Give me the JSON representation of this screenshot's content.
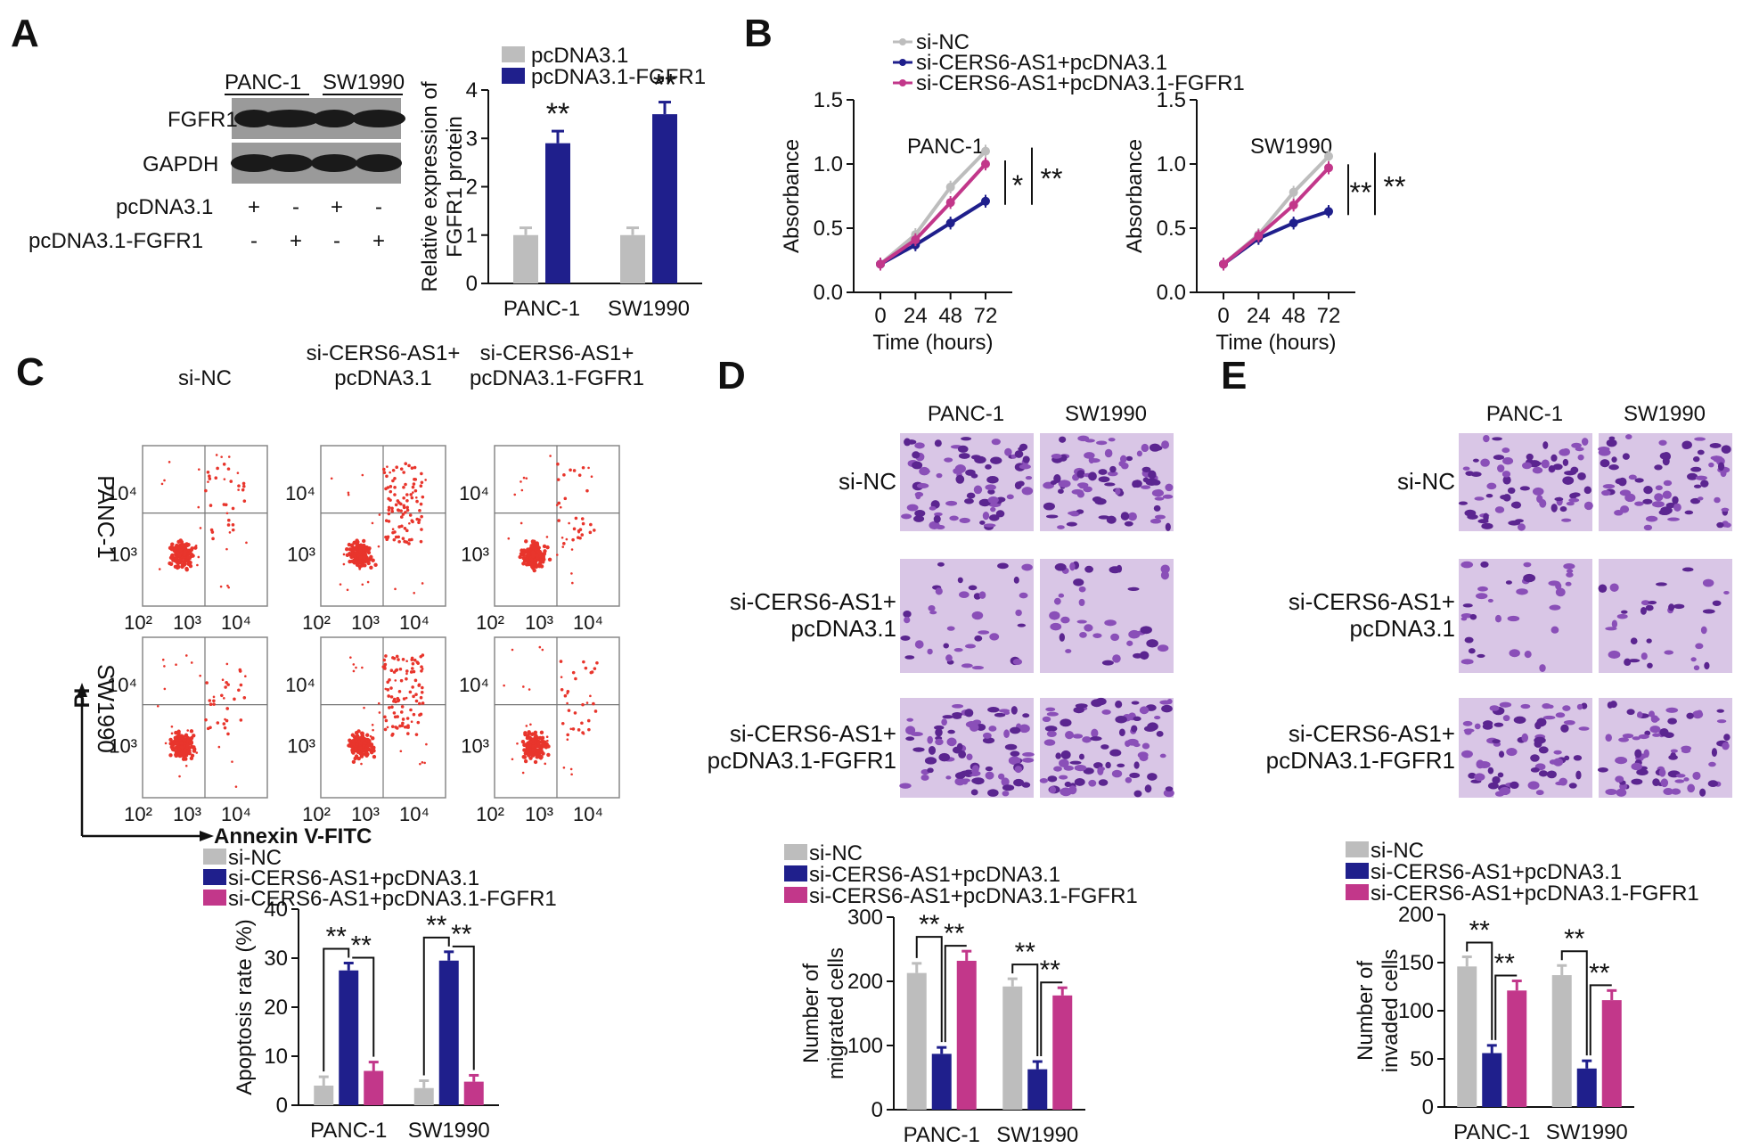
{
  "panel_labels": {
    "a": "A",
    "b": "B",
    "c": "C",
    "d": "D",
    "e": "E"
  },
  "colors": {
    "grey": "#bdbdbd",
    "blue": "#1f1f8c",
    "magenta": "#c2378a",
    "dot": "#e8352c"
  },
  "western_blot": {
    "cell_lines": [
      "PANC-1",
      "SW1990"
    ],
    "bands": [
      "FGFR1",
      "GAPDH"
    ],
    "row_labels": [
      "pcDNA3.1",
      "pcDNA3.1-FGFR1"
    ],
    "row1_signs": [
      "+",
      "-",
      "+",
      "-"
    ],
    "row2_signs": [
      "-",
      "+",
      "-",
      "+"
    ]
  },
  "chart_data": [
    {
      "id": "A",
      "type": "bar",
      "categories": [
        "PANC-1",
        "SW1990"
      ],
      "series": [
        {
          "name": "pcDNA3.1",
          "values": [
            1.0,
            1.0
          ],
          "errors": [
            0.15,
            0.15
          ],
          "color": "#bdbdbd"
        },
        {
          "name": "pcDNA3.1-FGFR1",
          "values": [
            2.9,
            3.5
          ],
          "errors": [
            0.25,
            0.25
          ],
          "color": "#1f1f8c"
        }
      ],
      "ylabel": "Relative expression of FGFR1 protein",
      "ylim": [
        0,
        4
      ],
      "yticks": [
        "0",
        "1",
        "2",
        "3",
        "4"
      ],
      "annotations": [
        "**",
        "**"
      ]
    },
    {
      "id": "B1",
      "type": "line",
      "title": "PANC-1",
      "x": [
        0,
        24,
        48,
        72
      ],
      "xticks": [
        "0",
        "24",
        "48",
        "72"
      ],
      "series": [
        {
          "name": "si-NC",
          "values": [
            0.22,
            0.45,
            0.82,
            1.1
          ],
          "color": "#bdbdbd"
        },
        {
          "name": "si-CERS6-AS1+pcDNA3.1",
          "values": [
            0.22,
            0.37,
            0.54,
            0.71
          ],
          "color": "#1f1f8c"
        },
        {
          "name": "si-CERS6-AS1+pcDNA3.1-FGFR1",
          "values": [
            0.22,
            0.41,
            0.7,
            1.0
          ],
          "color": "#c2378a"
        }
      ],
      "xlabel": "Time (hours)",
      "ylabel": "Absorbance",
      "ylim": [
        0,
        1.5
      ],
      "yticks": [
        "0.0",
        "0.5",
        "1.0",
        "1.5"
      ],
      "sig": [
        "*",
        "**"
      ]
    },
    {
      "id": "B2",
      "type": "line",
      "title": "SW1990",
      "x": [
        0,
        24,
        48,
        72
      ],
      "xticks": [
        "0",
        "24",
        "48",
        "72"
      ],
      "series": [
        {
          "name": "si-NC",
          "values": [
            0.22,
            0.45,
            0.78,
            1.06
          ],
          "color": "#bdbdbd"
        },
        {
          "name": "si-CERS6-AS1+pcDNA3.1",
          "values": [
            0.22,
            0.42,
            0.54,
            0.63
          ],
          "color": "#1f1f8c"
        },
        {
          "name": "si-CERS6-AS1+pcDNA3.1-FGFR1",
          "values": [
            0.22,
            0.44,
            0.68,
            0.97
          ],
          "color": "#c2378a"
        }
      ],
      "xlabel": "Time (hours)",
      "ylabel": "Absorbance",
      "ylim": [
        0,
        1.5
      ],
      "yticks": [
        "0.0",
        "0.5",
        "1.0",
        "1.5"
      ],
      "sig": [
        "**",
        "**"
      ]
    },
    {
      "id": "C",
      "type": "bar",
      "categories": [
        "PANC-1",
        "SW1990"
      ],
      "series": [
        {
          "name": "si-NC",
          "values": [
            4,
            3.5
          ],
          "errors": [
            1.8,
            1.5
          ],
          "color": "#bdbdbd"
        },
        {
          "name": "si-CERS6-AS1+pcDNA3.1",
          "values": [
            27.5,
            29.5
          ],
          "errors": [
            1.5,
            1.8
          ],
          "color": "#1f1f8c"
        },
        {
          "name": "si-CERS6-AS1+pcDNA3.1-FGFR1",
          "values": [
            7,
            4.8
          ],
          "errors": [
            1.8,
            1.3
          ],
          "color": "#c2378a"
        }
      ],
      "ylabel": "Apoptosis rate (%)",
      "ylim": [
        0,
        40
      ],
      "yticks": [
        "0",
        "10",
        "20",
        "30",
        "40"
      ],
      "annotations": [
        "**",
        "**",
        "**",
        "**"
      ]
    },
    {
      "id": "D",
      "type": "bar",
      "categories": [
        "PANC-1",
        "SW1990"
      ],
      "series": [
        {
          "name": "si-NC",
          "values": [
            213,
            192
          ],
          "errors": [
            15,
            12
          ],
          "color": "#bdbdbd"
        },
        {
          "name": "si-CERS6-AS1+pcDNA3.1",
          "values": [
            87,
            63
          ],
          "errors": [
            10,
            12
          ],
          "color": "#1f1f8c"
        },
        {
          "name": "si-CERS6-AS1+pcDNA3.1-FGFR1",
          "values": [
            232,
            178
          ],
          "errors": [
            15,
            12
          ],
          "color": "#c2378a"
        }
      ],
      "ylabel": "Number of migrated cells",
      "ylim": [
        0,
        300
      ],
      "yticks": [
        "0",
        "100",
        "200",
        "300"
      ],
      "annotations": [
        "**",
        "**",
        "**",
        "**"
      ]
    },
    {
      "id": "E",
      "type": "bar",
      "categories": [
        "PANC-1",
        "SW1990"
      ],
      "series": [
        {
          "name": "si-NC",
          "values": [
            146,
            137
          ],
          "errors": [
            10,
            10
          ],
          "color": "#bdbdbd"
        },
        {
          "name": "si-CERS6-AS1+pcDNA3.1",
          "values": [
            56,
            40
          ],
          "errors": [
            8,
            8
          ],
          "color": "#1f1f8c"
        },
        {
          "name": "si-CERS6-AS1+pcDNA3.1-FGFR1",
          "values": [
            121,
            111
          ],
          "errors": [
            10,
            10
          ],
          "color": "#c2378a"
        }
      ],
      "ylabel": "Number of invaded cells",
      "ylim": [
        0,
        200
      ],
      "yticks": [
        "0",
        "50",
        "100",
        "150",
        "200"
      ],
      "annotations": [
        "**",
        "**",
        "**",
        "**"
      ]
    }
  ],
  "legend_b": [
    "si-NC",
    "si-CERS6-AS1+pcDNA3.1",
    "si-CERS6-AS1+pcDNA3.1-FGFR1"
  ],
  "legend_cde": [
    "si-NC",
    "si-CERS6-AS1+pcDNA3.1",
    "si-CERS6-AS1+pcDNA3.1-FGFR1"
  ],
  "flow": {
    "col_titles": [
      [
        "si-NC"
      ],
      [
        "si-CERS6-AS1+",
        "pcDNA3.1"
      ],
      [
        "si-CERS6-AS1+",
        "pcDNA3.1-FGFR1"
      ]
    ],
    "rows": [
      "PANC-1",
      "SW1990"
    ],
    "ylabel": "PI",
    "xlabel": "Annexin V-FITC",
    "xticks": [
      "10²",
      "10³",
      "10⁴"
    ],
    "yticks": [
      "10³",
      "10⁴"
    ]
  },
  "transwell": {
    "columns": [
      "PANC-1",
      "SW1990"
    ],
    "rows_d": [
      [
        "si-NC"
      ],
      [
        "si-CERS6-AS1+",
        "pcDNA3.1"
      ],
      [
        "si-CERS6-AS1+",
        "pcDNA3.1-FGFR1"
      ]
    ],
    "rows_e": [
      [
        "si-NC"
      ],
      [
        "si-CERS6-AS1+",
        "pcDNA3.1"
      ],
      [
        "si-CERS6-AS1+",
        "pcDNA3.1-FGFR1"
      ]
    ]
  }
}
